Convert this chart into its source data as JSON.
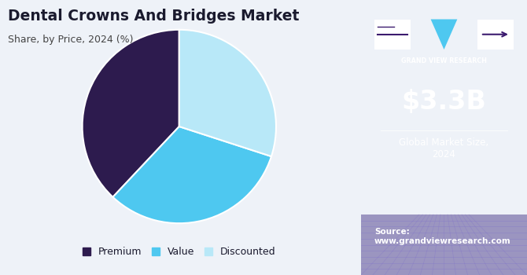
{
  "title": "Dental Crowns And Bridges Market",
  "subtitle": "Share, by Price, 2024 (%)",
  "slices": [
    38,
    32,
    30
  ],
  "labels": [
    "Premium",
    "Value",
    "Discounted"
  ],
  "colors": [
    "#2d1b4e",
    "#4ec8f0",
    "#b8e8f8"
  ],
  "startangle": 90,
  "bg_color": "#eef2f8",
  "sidebar_color": "#3b1a6e",
  "title_color": "#1a1a2e",
  "subtitle_color": "#444444",
  "market_size": "$3.3B",
  "market_label": "Global Market Size,\n2024",
  "source_text": "Source:\nwww.grandviewresearch.com",
  "wedge_edge_color": "white",
  "wedge_linewidth": 1.5
}
